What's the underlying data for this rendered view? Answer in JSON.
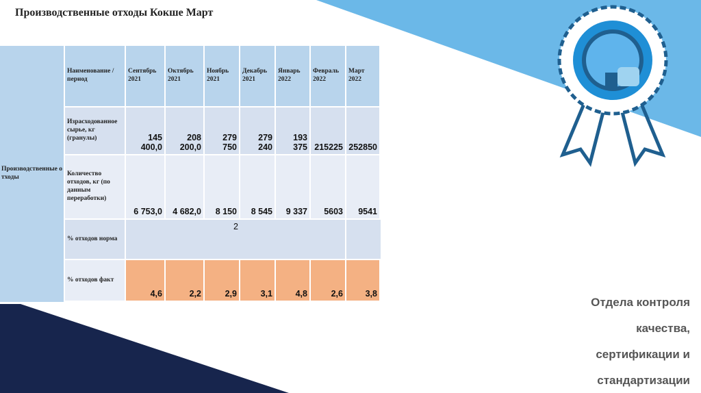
{
  "title": "Производственные отходы Кокше Март",
  "table": {
    "side_label": "Производственные отходы",
    "header": [
      "Наименование /период",
      "Сентябрь 2021",
      "Октябрь 2021",
      "Ноябрь 2021",
      "Декабрь 2021",
      "Январь 2022",
      "Февраль 2022",
      "Март 2022"
    ],
    "rows": [
      {
        "label": "Израсходованное сырье, кг (гранулы)",
        "cells": [
          "145 400,0",
          "208 200,0",
          "279 750",
          "279 240",
          "193 375",
          "215225",
          "252850"
        ]
      },
      {
        "label": "Количество отходов, кг (по данным переработки)",
        "cells": [
          "6 753,0",
          "4 682,0",
          "8 150",
          "8 545",
          "9 337",
          "5603",
          "9541"
        ]
      },
      {
        "label": "% отходов норма",
        "cells": [
          "2"
        ]
      },
      {
        "label": "% отходов факт",
        "cells": [
          "4,6",
          "2,2",
          "2,9",
          "3,1",
          "4,8",
          "2,6",
          "3,8"
        ]
      }
    ]
  },
  "caption_lines": [
    "Отдела контроля",
    "качества,",
    "сертификации и",
    "стандартизации"
  ]
}
